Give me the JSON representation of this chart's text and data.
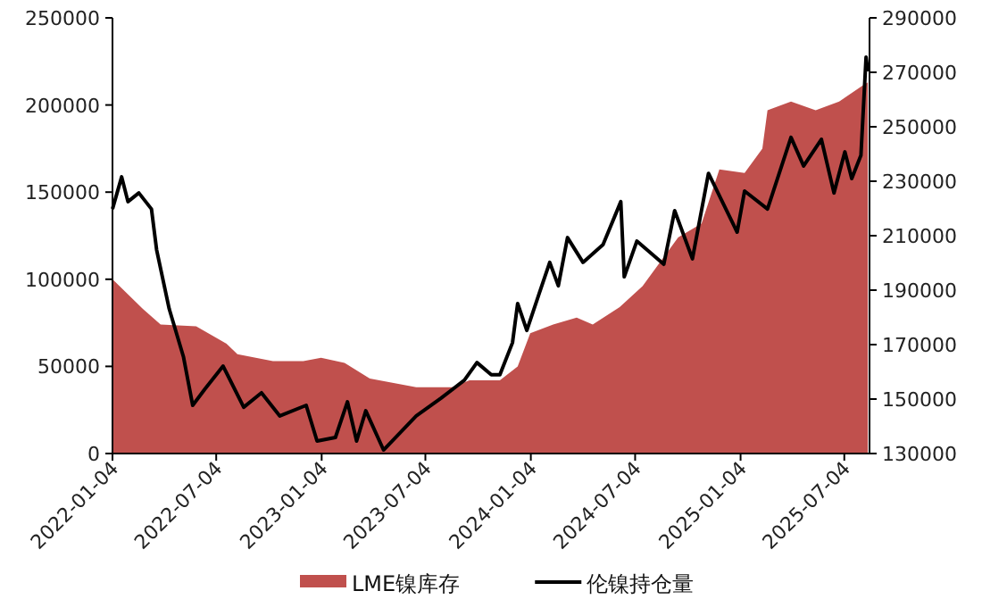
{
  "chart_data": {
    "type": "area",
    "x": [
      "2022-01-04",
      "2022-02-26",
      "2022-03-29",
      "2022-05-30",
      "2022-07-22",
      "2022-08-10",
      "2022-10-11",
      "2022-12-03",
      "2023-01-03",
      "2023-02-13",
      "2023-03-29",
      "2023-06-18",
      "2023-08-19",
      "2023-09-19",
      "2023-11-11",
      "2023-12-12",
      "2024-01-03",
      "2024-02-12",
      "2024-03-24",
      "2024-04-21",
      "2024-06-07",
      "2024-07-17",
      "2024-09-17",
      "2024-10-28",
      "2024-11-28",
      "2025-01-11",
      "2025-02-11",
      "2025-02-20",
      "2025-04-02",
      "2025-05-15",
      "2025-06-25",
      "2025-08-04",
      "2025-08-14"
    ],
    "series": [
      {
        "name": "LME镍库存",
        "color": "#c0504d",
        "values": [
          100000,
          83000,
          74000,
          73000,
          63000,
          57000,
          53000,
          53000,
          55000,
          52000,
          43000,
          38000,
          38000,
          42000,
          42000,
          50000,
          69000,
          74000,
          78000,
          74000,
          84000,
          96000,
          124000,
          132000,
          163000,
          161000,
          175000,
          197000,
          202000,
          197000,
          202000,
          211000,
          213000
        ]
      },
      {
        "name": "伦镍持仓量",
        "type": "line",
        "axis": "y2",
        "color": "#000000",
        "x": [
          "2022-01-04",
          "2022-01-20",
          "2022-01-31",
          "2022-02-19",
          "2022-03-13",
          "2022-03-22",
          "2022-04-13",
          "2022-05-08",
          "2022-05-24",
          "2022-06-14",
          "2022-07-16",
          "2022-08-21",
          "2022-09-21",
          "2022-10-23",
          "2022-12-08",
          "2022-12-27",
          "2023-01-28",
          "2023-02-18",
          "2023-03-06",
          "2023-03-22",
          "2023-04-22",
          "2023-06-18",
          "2023-07-31",
          "2023-09-10",
          "2023-10-02",
          "2023-10-27",
          "2023-11-11",
          "2023-12-03",
          "2023-12-12",
          "2023-12-28",
          "2024-01-18",
          "2024-02-06",
          "2024-02-21",
          "2024-03-08",
          "2024-04-04",
          "2024-05-09",
          "2024-06-09",
          "2024-06-15",
          "2024-07-07",
          "2024-08-23",
          "2024-09-11",
          "2024-10-12",
          "2024-11-09",
          "2024-12-29",
          "2025-01-11",
          "2025-02-20",
          "2025-04-02",
          "2025-04-24",
          "2025-05-25",
          "2025-06-16",
          "2025-07-05",
          "2025-07-17",
          "2025-08-02",
          "2025-08-11",
          "2025-08-14"
        ],
        "values": [
          219800,
          231600,
          222500,
          225700,
          219800,
          204800,
          183100,
          165400,
          147700,
          153600,
          162100,
          147000,
          152300,
          143800,
          147700,
          134600,
          135900,
          149000,
          134600,
          145700,
          131300,
          143800,
          150300,
          156900,
          163400,
          158900,
          158900,
          170700,
          185100,
          175200,
          188400,
          200200,
          191600,
          209300,
          200200,
          206700,
          222500,
          194900,
          208000,
          199500,
          219200,
          201500,
          232900,
          211300,
          226400,
          219800,
          246100,
          235600,
          245400,
          225700,
          240800,
          231000,
          239500,
          275600,
          270300
        ]
      }
    ],
    "xlim": [
      "2022-01-04",
      "2025-08-17"
    ],
    "xticks": [
      "2022-01-04",
      "2022-07-04",
      "2023-01-04",
      "2023-07-04",
      "2024-01-04",
      "2024-07-04",
      "2025-01-04",
      "2025-07-04"
    ],
    "ylim": [
      0,
      250000
    ],
    "yticks": [
      0,
      50000,
      100000,
      150000,
      200000,
      250000
    ],
    "y2lim": [
      130000,
      290000
    ],
    "y2ticks": [
      130000,
      150000,
      170000,
      190000,
      210000,
      230000,
      250000,
      270000,
      290000
    ],
    "legend": "bottom",
    "grid": false
  }
}
